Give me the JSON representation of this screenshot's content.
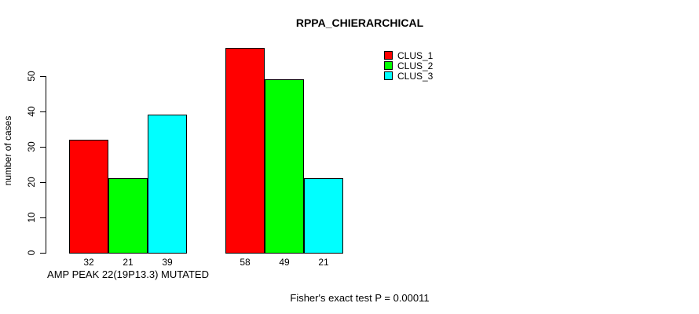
{
  "chart_data": {
    "type": "bar",
    "title": "RPPA_CHIERARCHICAL",
    "ylabel": "number of cases",
    "yticks": [
      0,
      10,
      20,
      30,
      40,
      50
    ],
    "ylim": [
      0,
      58
    ],
    "grid": false,
    "legend_position": "top-right",
    "series": [
      {
        "name": "CLUS_1",
        "color": "#ff0000"
      },
      {
        "name": "CLUS_2",
        "color": "#00ff00"
      },
      {
        "name": "CLUS_3",
        "color": "#00ffff"
      }
    ],
    "groups": [
      {
        "label": "AMP PEAK 22(19P13.3) MUTATED",
        "values": [
          32,
          21,
          39
        ]
      },
      {
        "label": "",
        "values": [
          58,
          49,
          21
        ]
      }
    ],
    "annotation": "Fisher's exact test P = 0.00011"
  }
}
